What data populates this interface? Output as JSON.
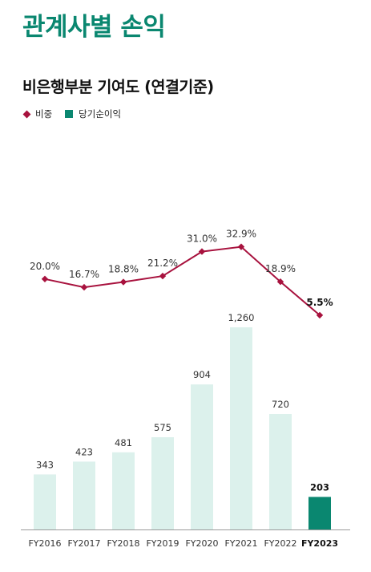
{
  "header": {
    "title": "관계사별 손익",
    "chart_title": "비은행부분 기여도 (연결기준)"
  },
  "legend": {
    "ratio_label": "비중",
    "income_label": "당기순이익"
  },
  "colors": {
    "brand_green": "#0a8770",
    "bar_light": "#dcf1ec",
    "bar_highlight": "#0a8770",
    "line_color": "#a8123e"
  },
  "chart_data": {
    "type": "bar",
    "categories": [
      "FY2016",
      "FY2017",
      "FY2018",
      "FY2019",
      "FY2020",
      "FY2021",
      "FY2022",
      "FY2023"
    ],
    "highlight_category": "FY2023",
    "series": [
      {
        "name": "당기순이익",
        "type": "bar",
        "values": [
          343,
          423,
          481,
          575,
          904,
          1260,
          720,
          203
        ],
        "labels": [
          "343",
          "423",
          "481",
          "575",
          "904",
          "1,260",
          "720",
          "203"
        ]
      },
      {
        "name": "비중",
        "type": "line",
        "values": [
          20.0,
          16.7,
          18.8,
          21.2,
          31.0,
          32.9,
          18.9,
          5.5
        ],
        "labels": [
          "20.0%",
          "16.7%",
          "18.8%",
          "21.2%",
          "31.0%",
          "32.9%",
          "18.9%",
          "5.5%"
        ]
      }
    ],
    "title": "비은행부분 기여도 (연결기준)",
    "legend_position": "top-left",
    "grid": false
  }
}
